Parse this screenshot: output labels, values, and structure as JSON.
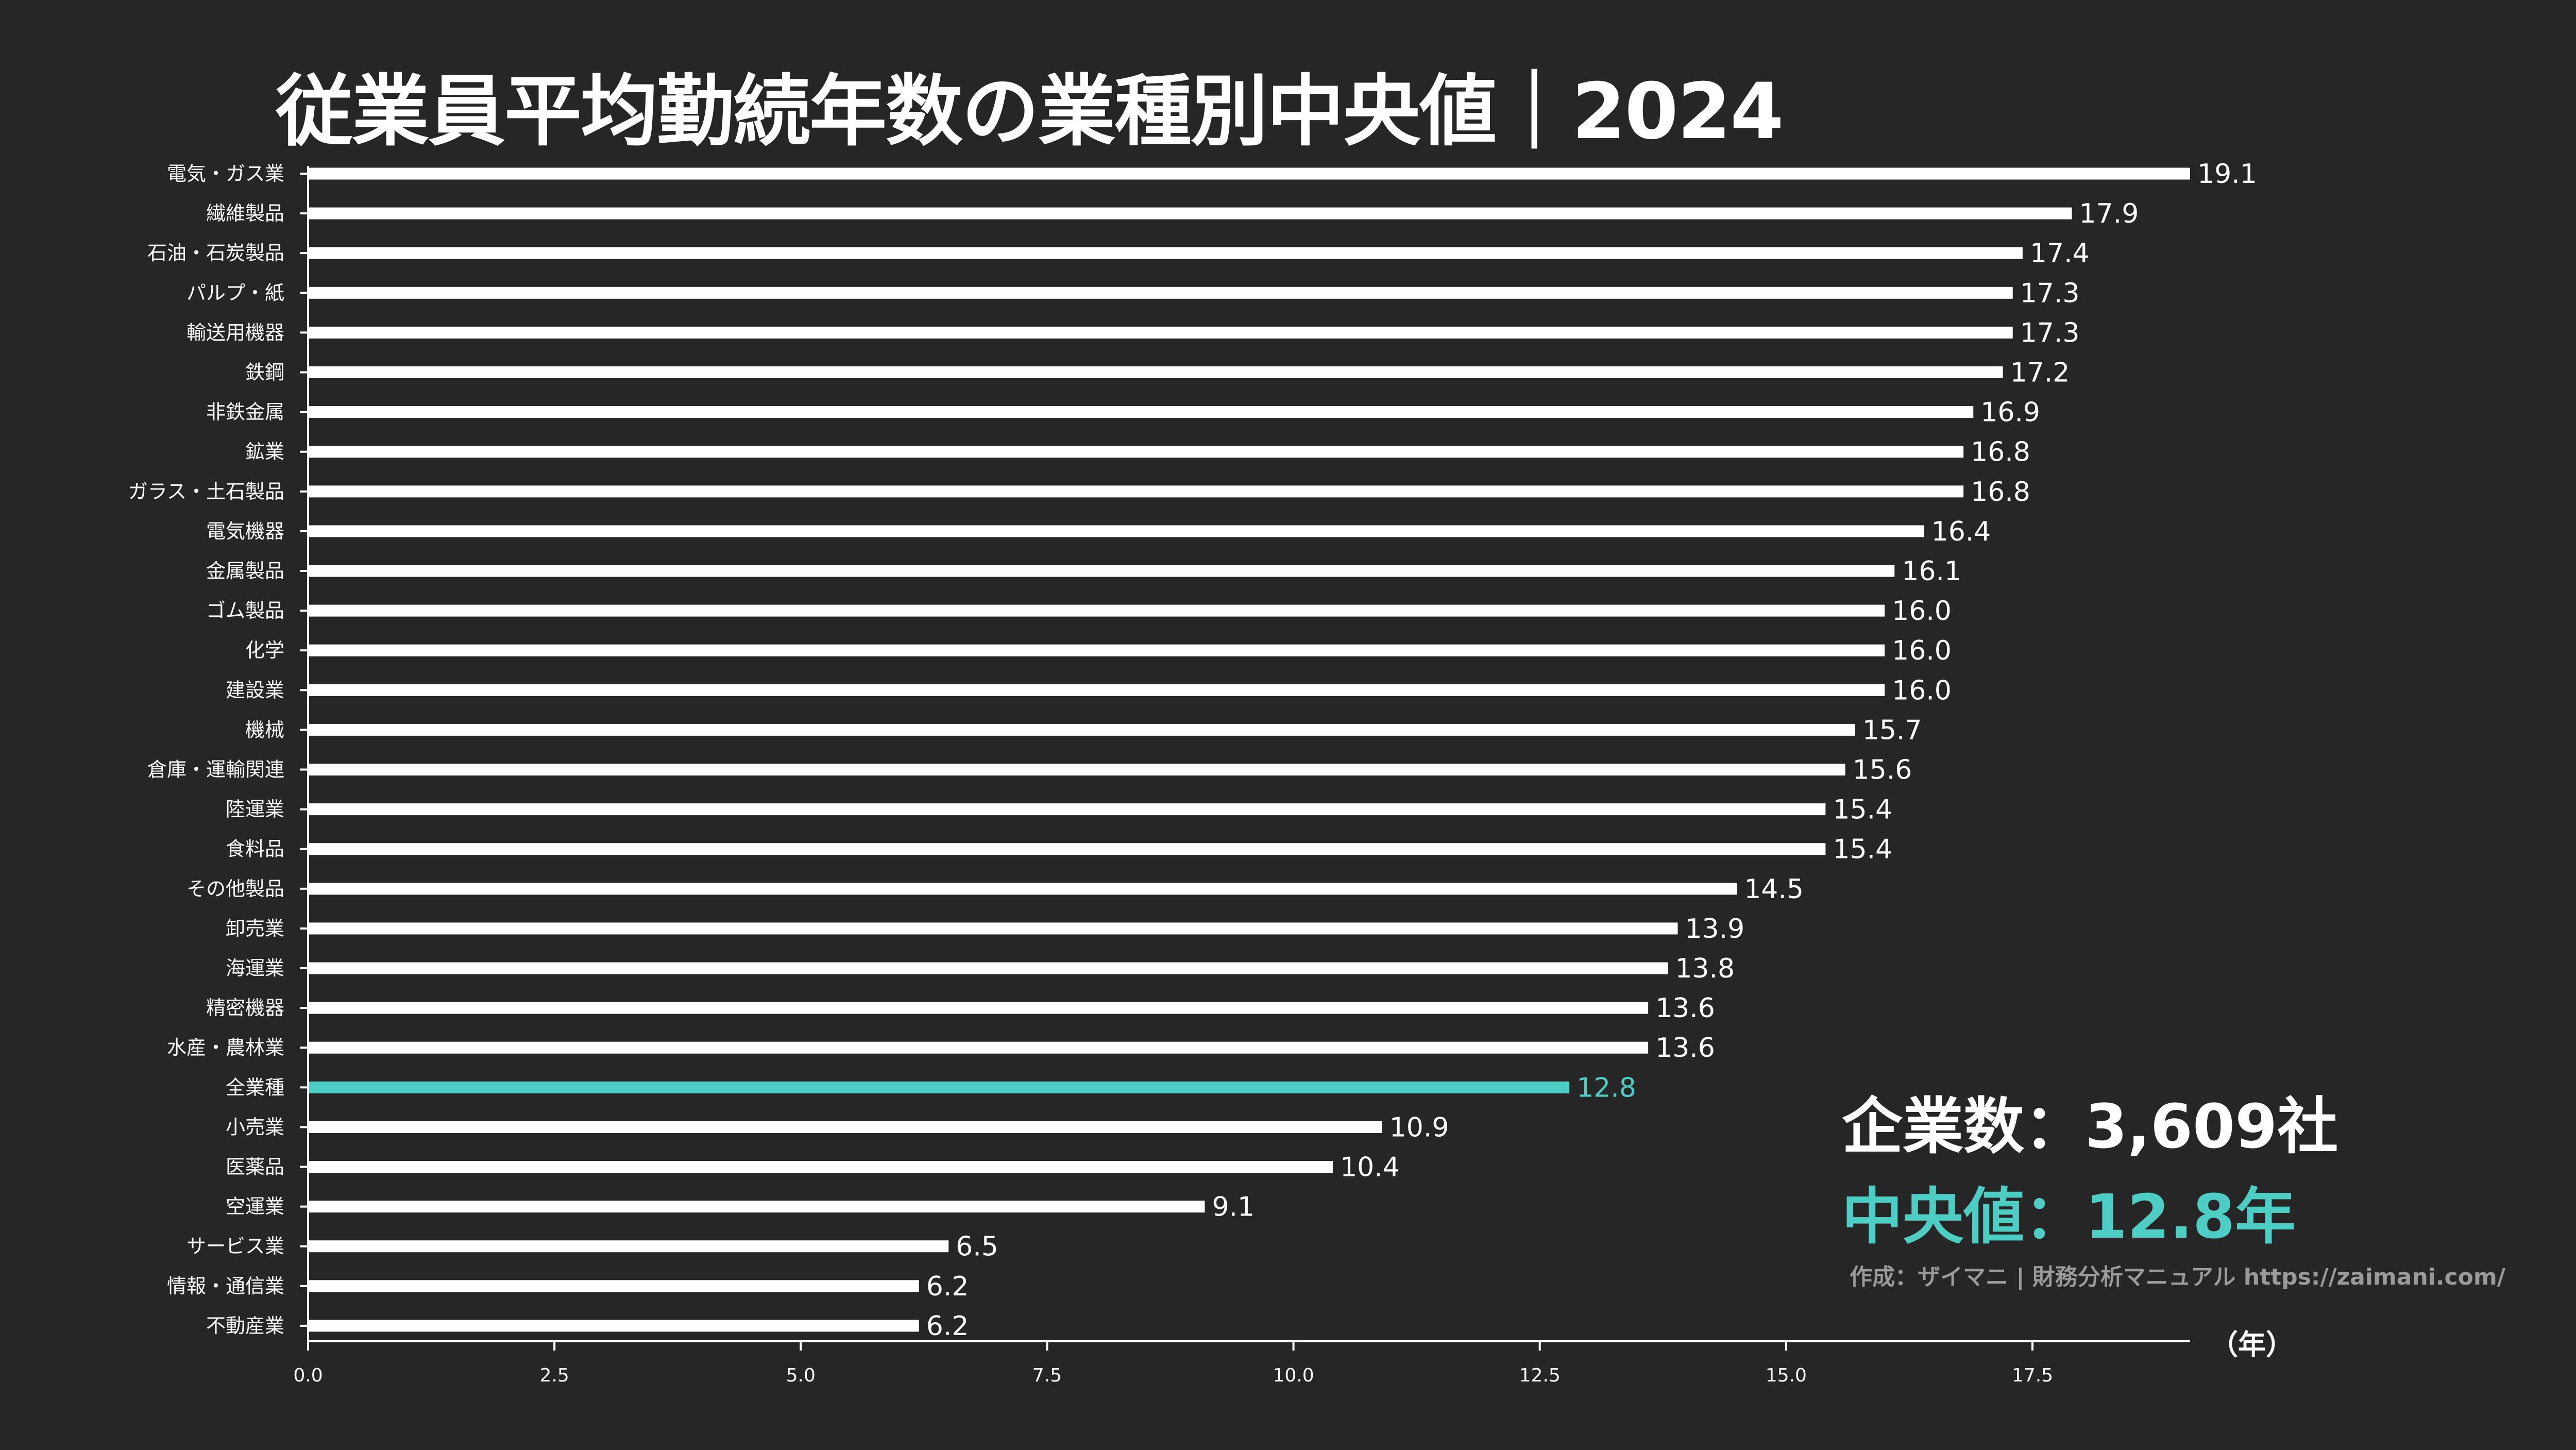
{
  "chart_data": {
    "type": "bar",
    "orientation": "horizontal",
    "title": "従業員平均勤続年数の業種別中央値｜2024",
    "xlabel": "（年）",
    "ylabel": "",
    "xlim": [
      0,
      19.1
    ],
    "xticks": [
      "0.0",
      "2.5",
      "5.0",
      "7.5",
      "10.0",
      "12.5",
      "15.0",
      "17.5"
    ],
    "xtick_values": [
      0,
      2.5,
      5,
      7.5,
      10,
      12.5,
      15,
      17.5
    ],
    "bar_color": "#ffffff",
    "highlight_color": "#4ecdc4",
    "highlight_category": "全業種",
    "categories": [
      "電気・ガス業",
      "繊維製品",
      "石油・石炭製品",
      "パルプ・紙",
      "輸送用機器",
      "鉄鋼",
      "非鉄金属",
      "鉱業",
      "ガラス・土石製品",
      "電気機器",
      "金属製品",
      "ゴム製品",
      "化学",
      "建設業",
      "機械",
      "倉庫・運輸関連",
      "陸運業",
      "食料品",
      "その他製品",
      "卸売業",
      "海運業",
      "精密機器",
      "水産・農林業",
      "全業種",
      "小売業",
      "医薬品",
      "空運業",
      "サービス業",
      "情報・通信業",
      "不動産業"
    ],
    "values": [
      19.1,
      17.9,
      17.4,
      17.3,
      17.3,
      17.2,
      16.9,
      16.8,
      16.8,
      16.4,
      16.1,
      16.0,
      16.0,
      16.0,
      15.7,
      15.6,
      15.4,
      15.4,
      14.5,
      13.9,
      13.8,
      13.6,
      13.6,
      12.8,
      10.9,
      10.4,
      9.1,
      6.5,
      6.2,
      6.2
    ],
    "value_labels": [
      "19.1",
      "17.9",
      "17.4",
      "17.3",
      "17.3",
      "17.2",
      "16.9",
      "16.8",
      "16.8",
      "16.4",
      "16.1",
      "16.0",
      "16.0",
      "16.0",
      "15.7",
      "15.6",
      "15.4",
      "15.4",
      "14.5",
      "13.9",
      "13.8",
      "13.6",
      "13.6",
      "12.8",
      "10.9",
      "10.4",
      "9.1",
      "6.5",
      "6.2",
      "6.2"
    ]
  },
  "summary": {
    "companies": "企業数：3,609社",
    "median": "中央値：12.8年"
  },
  "credit": "作成：ザイマニ | 財務分析マニュアル https://zaimani.com/"
}
